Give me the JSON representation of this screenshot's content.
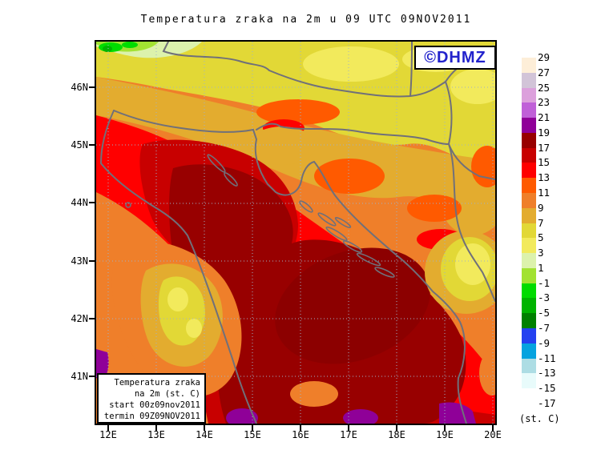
{
  "title": "Temperatura zraka na 2m u 09 UTC 09NOV2011",
  "logo": {
    "text": "©DHMZ",
    "color": "#2222CC"
  },
  "map": {
    "lat_labels": [
      "46N",
      "45N",
      "44N",
      "43N",
      "42N",
      "41N"
    ],
    "lon_labels": [
      "12E",
      "13E",
      "14E",
      "15E",
      "16E",
      "17E",
      "18E",
      "19E",
      "20E"
    ]
  },
  "info_box": {
    "lines": [
      "Temperatura zraka",
      "na 2m (st. C)",
      "start 00z09nov2011",
      "termin 09Z09NOV2011"
    ]
  },
  "colorbar": {
    "unit_label": "(st. C)",
    "tick_labels": [
      "29",
      "27",
      "25",
      "23",
      "21",
      "19",
      "17",
      "15",
      "13",
      "11",
      "9",
      "7",
      "5",
      "3",
      "1",
      "-1",
      "-3",
      "-5",
      "-7",
      "-9",
      "-11",
      "-13",
      "-15",
      "-17"
    ],
    "box_colors": [
      "#FDEED8",
      "#D2C4D8",
      "#DCA0DC",
      "#C060D8",
      "#8F0098",
      "#980000",
      "#C80000",
      "#FF0000",
      "#FF5A00",
      "#EF7F2A",
      "#E3AC2F",
      "#E2D836",
      "#F2EA5C",
      "#DCF2AC",
      "#A2E232",
      "#00DC00",
      "#00B400",
      "#008000",
      "#2441F0",
      "#06A3DF",
      "#ADDDE4",
      "#E8FBFB",
      "#FFFFFF"
    ]
  },
  "chart_data": {
    "type": "filled-contour-map",
    "title": "Temperatura zraka na 2m u 09 UTC 09NOV2011",
    "variable": "Temperatura zraka na 2m (st. C)",
    "run_start": "start 00z09nov2011",
    "valid_term": "termin 09Z09NOV2011",
    "source_logo": "©DHMZ",
    "lat_ticks": [
      "46N",
      "45N",
      "44N",
      "43N",
      "42N",
      "41N"
    ],
    "lon_ticks": [
      "12E",
      "13E",
      "14E",
      "15E",
      "16E",
      "17E",
      "18E",
      "19E",
      "20E"
    ],
    "legend_position": "right",
    "legend_step_degC": 2,
    "legend_values_degC": [
      29,
      27,
      25,
      23,
      21,
      19,
      17,
      15,
      13,
      11,
      9,
      7,
      5,
      3,
      1,
      -1,
      -3,
      -5,
      -7,
      -9,
      -11,
      -13,
      -15,
      -17
    ],
    "legend_band_colors": [
      "#FDEED8",
      "#D2C4D8",
      "#DCA0DC",
      "#C060D8",
      "#8F0098",
      "#980000",
      "#C80000",
      "#FF0000",
      "#FF5A00",
      "#EF7F2A",
      "#E3AC2F",
      "#E2D836",
      "#F2EA5C",
      "#DCF2AC",
      "#A2E232",
      "#00DC00",
      "#00B400",
      "#008000",
      "#2441F0",
      "#06A3DF",
      "#ADDDE4",
      "#E8FBFB",
      "#FFFFFF"
    ],
    "graticule": "dotted 1-degree grid",
    "field_summary": "Warm (17-19 C, dark red) air over central/south Adriatic sea; 13-17 C along coasts and Po valley; 9-13 C inland Croatia/Bosnia; 5-9 C (yellow) over Hungary, Slavonia and Bosnian mountains; small sub-zero green patch over Alps in NW corner; 19-21 C purple patches at far south edge"
  }
}
